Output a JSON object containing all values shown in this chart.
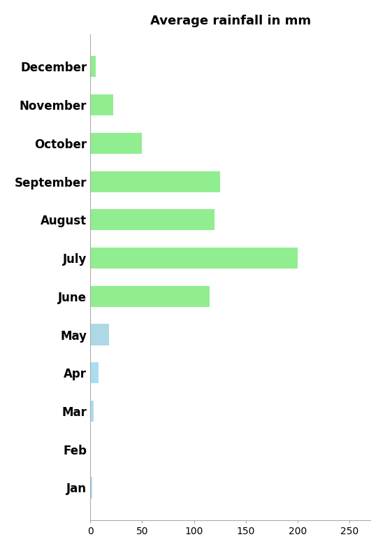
{
  "title": "Average rainfall in mm",
  "months": [
    "Jan",
    "Feb",
    "Mar",
    "Apr",
    "May",
    "June",
    "July",
    "August",
    "September",
    "October",
    "November",
    "December"
  ],
  "values": [
    2,
    0,
    3,
    8,
    18,
    115,
    200,
    120,
    125,
    50,
    22,
    5
  ],
  "bar_colors": [
    "#aadeee",
    "#ffffff",
    "#aadeee",
    "#aadeee",
    "#ADD8E6",
    "#90EE90",
    "#90EE90",
    "#90EE90",
    "#90EE90",
    "#90EE90",
    "#90EE90",
    "#90EE90"
  ],
  "xlim": [
    0,
    270
  ],
  "xticks": [
    0,
    50,
    100,
    150,
    200,
    250
  ],
  "title_fontsize": 13,
  "label_fontsize": 12,
  "tick_fontsize": 10,
  "bar_height": 0.55,
  "figsize": [
    5.51,
    7.88
  ],
  "dpi": 100
}
